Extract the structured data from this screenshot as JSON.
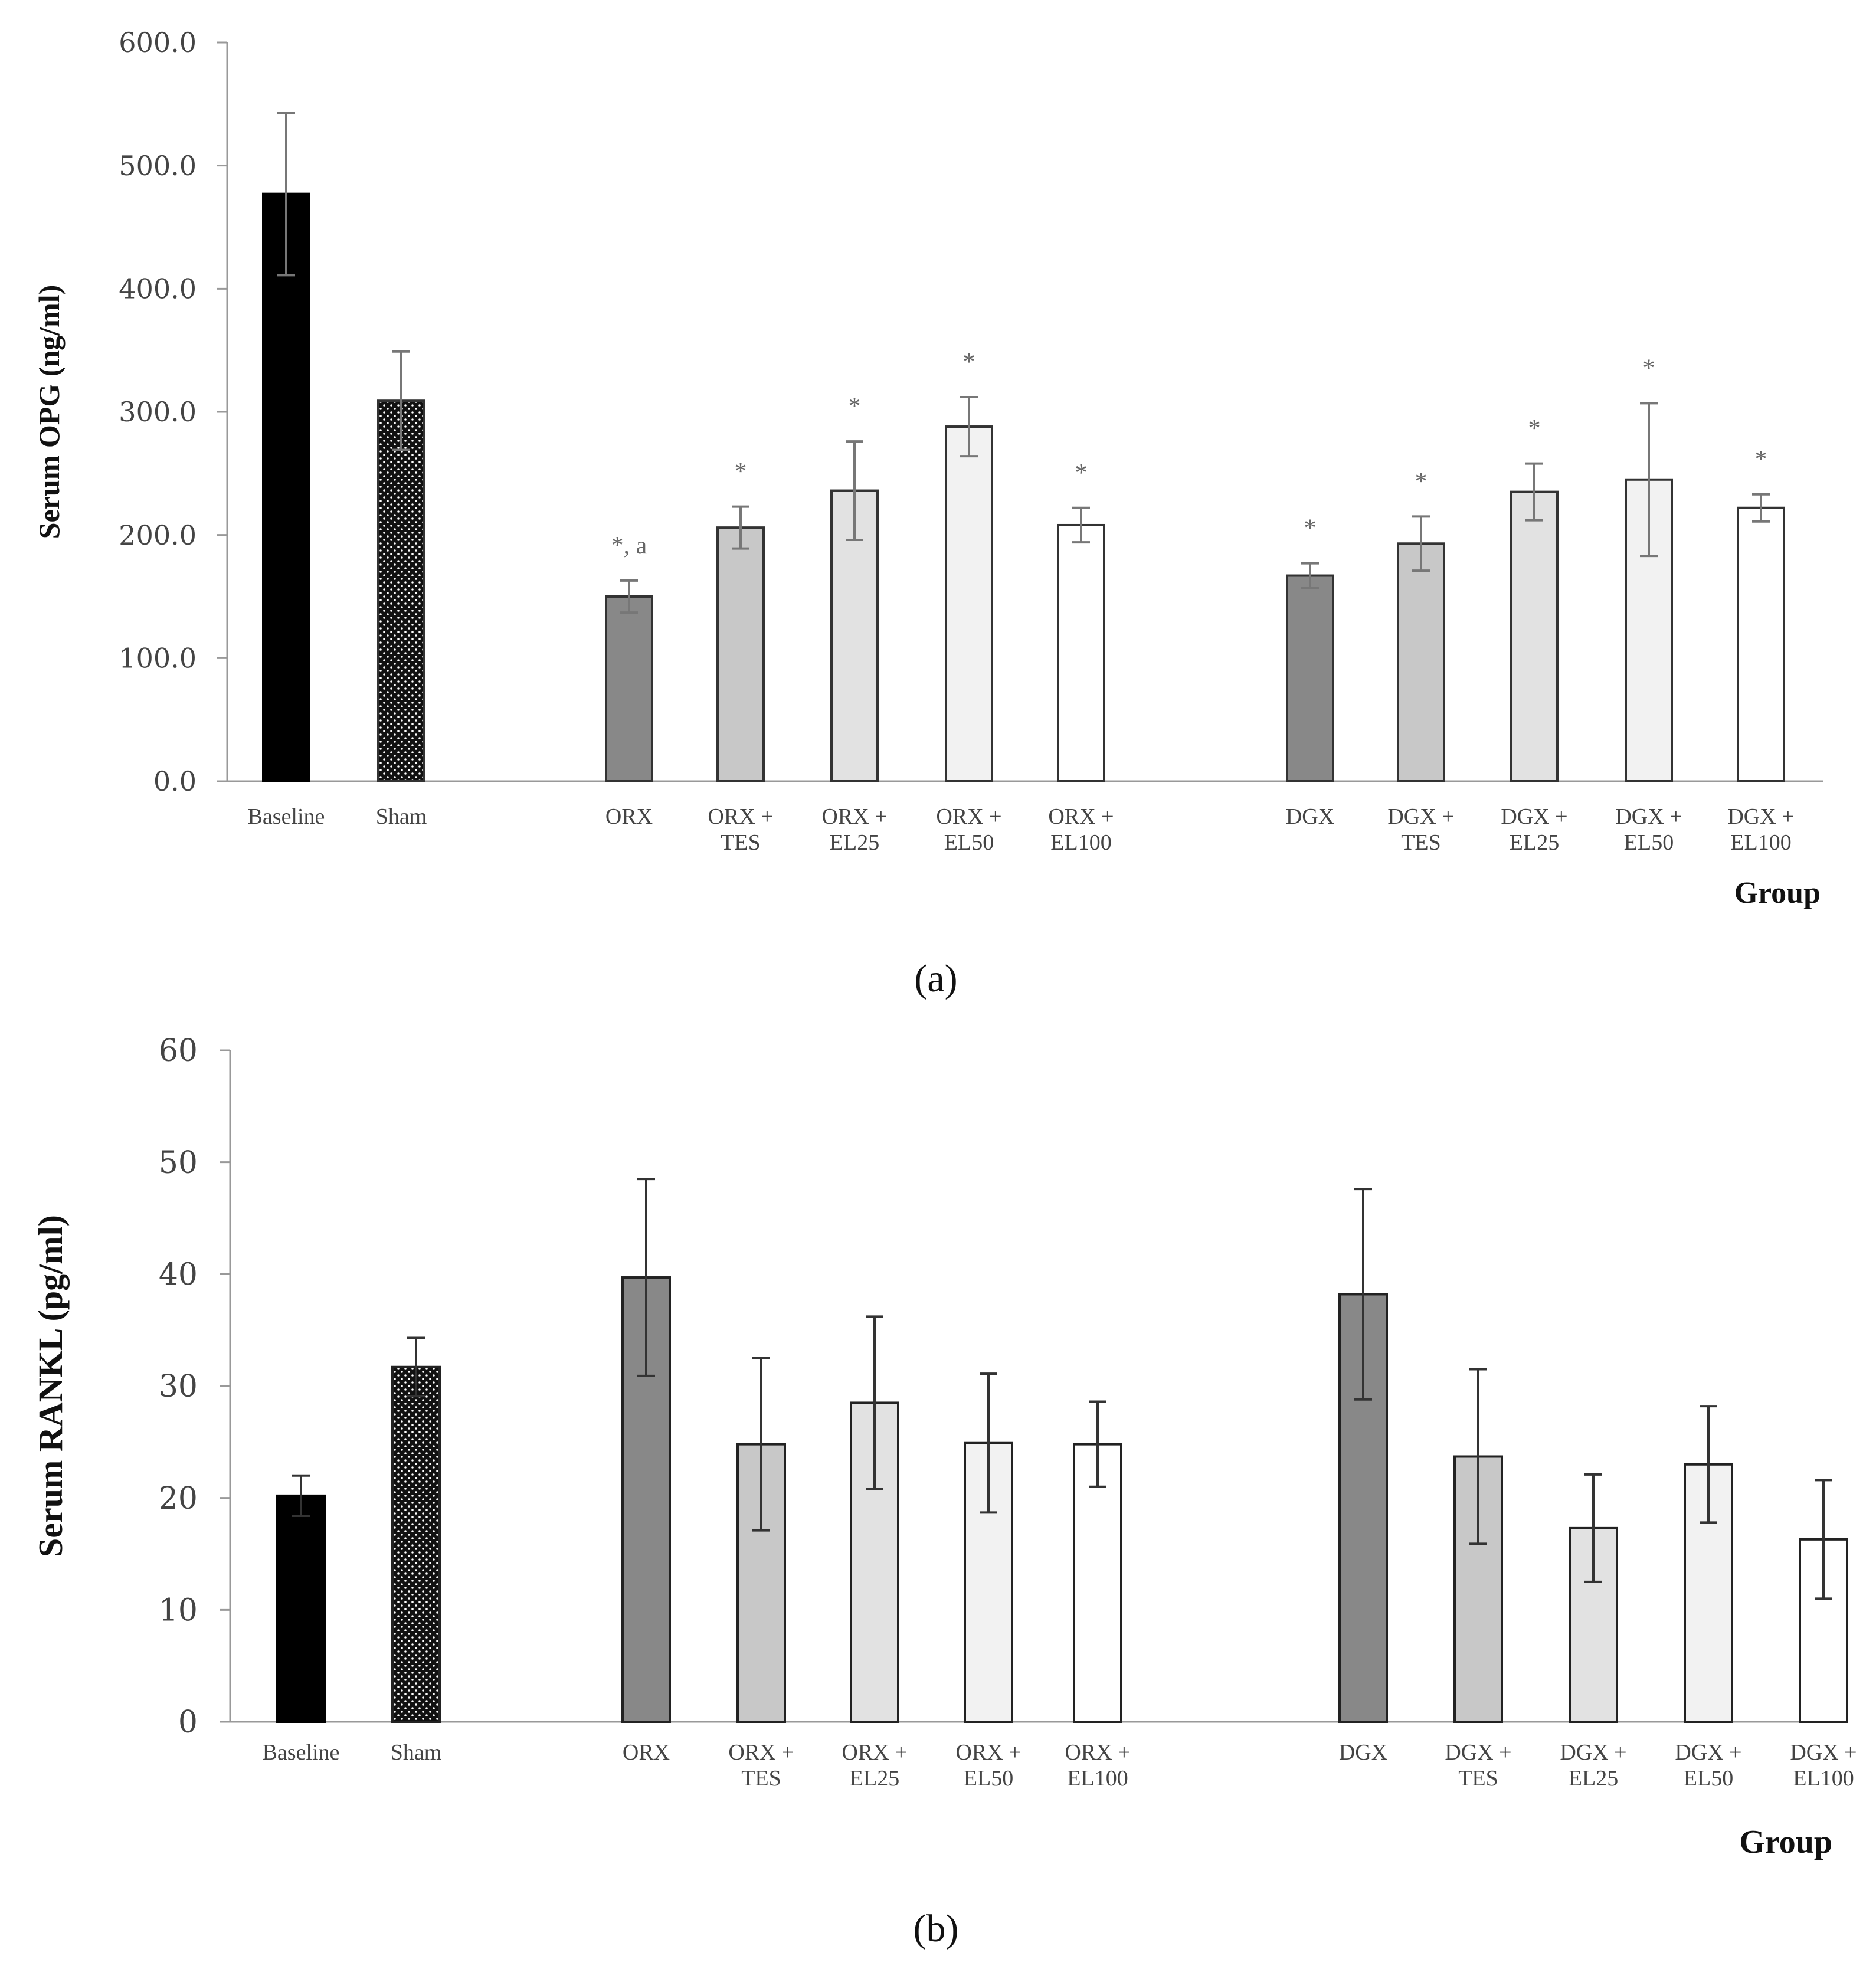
{
  "chart_data": [
    {
      "type": "bar",
      "panel_label": "(a)",
      "ylabel": "Serum OPG (ng/ml)",
      "xlabel": "Group",
      "ylim": [
        0,
        600
      ],
      "yticks": [
        "0.0",
        "100.0",
        "200.0",
        "300.0",
        "400.0",
        "500.0",
        "600.0"
      ],
      "categories": [
        [
          "Baseline"
        ],
        [
          "Sham"
        ],
        [
          "ORX"
        ],
        [
          "ORX +",
          "TES"
        ],
        [
          "ORX +",
          "EL25"
        ],
        [
          "ORX +",
          "EL50"
        ],
        [
          "ORX +",
          "EL100"
        ],
        [
          "DGX"
        ],
        [
          "DGX +",
          "TES"
        ],
        [
          "DGX +",
          "EL25"
        ],
        [
          "DGX +",
          "EL50"
        ],
        [
          "DGX +",
          "EL100"
        ]
      ],
      "values": [
        477,
        309,
        150,
        206,
        236,
        288,
        208,
        167,
        193,
        235,
        245,
        222
      ],
      "errors": [
        66,
        40,
        13,
        17,
        40,
        24,
        14,
        10,
        22,
        23,
        62,
        11
      ],
      "annotations": [
        "",
        "",
        "*, a",
        "*",
        "*",
        "*",
        "*",
        "*",
        "*",
        "*",
        "*",
        "*"
      ],
      "fills": [
        "black",
        "dots",
        "#888888",
        "#c8c8c8",
        "#e2e2e2",
        "#f2f2f2",
        "#ffffff",
        "#888888",
        "#c8c8c8",
        "#e2e2e2",
        "#f2f2f2",
        "#ffffff"
      ]
    },
    {
      "type": "bar",
      "panel_label": "(b)",
      "ylabel": "Serum RANKL (pg/ml)",
      "xlabel": "Group",
      "ylim": [
        0,
        60
      ],
      "yticks": [
        "0",
        "10",
        "20",
        "30",
        "40",
        "50",
        "60"
      ],
      "categories": [
        [
          "Baseline"
        ],
        [
          "Sham"
        ],
        [
          "ORX"
        ],
        [
          "ORX +",
          "TES"
        ],
        [
          "ORX +",
          "EL25"
        ],
        [
          "ORX +",
          "EL50"
        ],
        [
          "ORX +",
          "EL100"
        ],
        [
          "DGX"
        ],
        [
          "DGX +",
          "TES"
        ],
        [
          "DGX +",
          "EL25"
        ],
        [
          "DGX +",
          "EL50"
        ],
        [
          "DGX +",
          "EL100"
        ]
      ],
      "values": [
        20.2,
        31.7,
        39.7,
        24.8,
        28.5,
        24.9,
        24.8,
        38.2,
        23.7,
        17.3,
        23.0,
        16.3
      ],
      "errors": [
        1.8,
        2.6,
        8.8,
        7.7,
        7.7,
        6.2,
        3.8,
        9.4,
        7.8,
        4.8,
        5.2,
        5.3
      ],
      "annotations": [
        "",
        "",
        "",
        "",
        "",
        "",
        "",
        "",
        "",
        "",
        "",
        ""
      ],
      "fills": [
        "black",
        "dots",
        "#888888",
        "#c8c8c8",
        "#e2e2e2",
        "#f2f2f2",
        "#ffffff",
        "#888888",
        "#c8c8c8",
        "#e2e2e2",
        "#f2f2f2",
        "#ffffff"
      ]
    }
  ]
}
